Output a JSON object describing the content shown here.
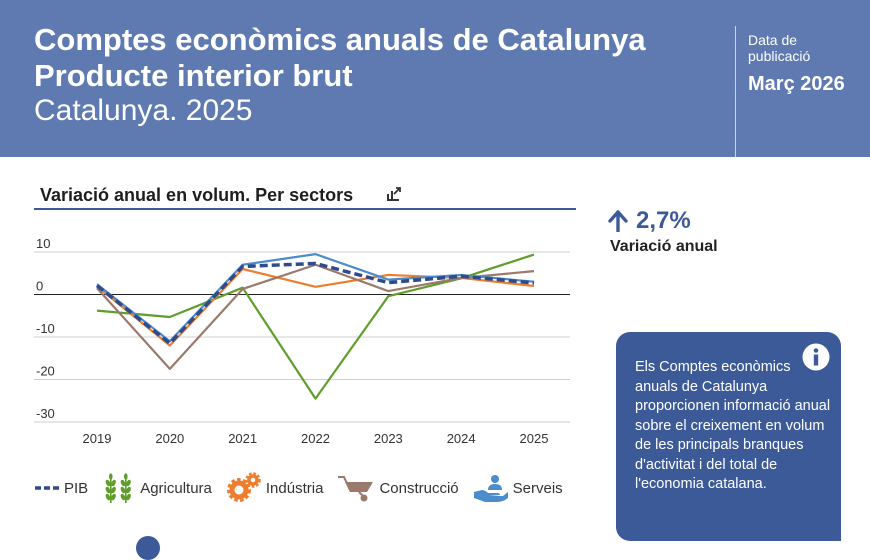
{
  "header": {
    "title_line1": "Comptes econòmics anuals de Catalunya",
    "title_line2": "Producte interior brut",
    "subtitle": "Catalunya. 2025",
    "pub_label": "Data de publicació",
    "pub_date": "Març 2026"
  },
  "chart_header": {
    "title": "Variació anual en volum. Per sectors"
  },
  "highlight": {
    "value": "2,7%",
    "label": "Variació anual"
  },
  "info": {
    "text": "Els Comptes econòmics anuals de Catalunya proporcionen informació anual sobre el creixement en volum de les principals branques d'activitat i del total de l'economia catalana."
  },
  "legend": [
    {
      "label": "PIB"
    },
    {
      "label": "Agricultura"
    },
    {
      "label": "Indústria"
    },
    {
      "label": "Construcció"
    },
    {
      "label": "Serveis"
    }
  ],
  "colors": {
    "header_bg": "#5e7ab0",
    "pib": "#2f4b8c",
    "agricultura": "#5f9e2a",
    "industria": "#ef7d2e",
    "construccio": "#9a7a6c",
    "serveis": "#4a8ccc"
  },
  "chart_data": {
    "type": "line",
    "title": "Variació anual en volum. Per sectors",
    "x": [
      "2019",
      "2020",
      "2021",
      "2022",
      "2023",
      "2024",
      "2025"
    ],
    "yticks": [
      10,
      0,
      -10,
      -20,
      -30
    ],
    "ytick_labels": [
      "10",
      "0",
      "-10",
      "-20",
      "-30"
    ],
    "ylim": [
      -30,
      10
    ],
    "series": [
      {
        "name": "Agricultura",
        "values": [
          -3.8,
          -5.3,
          1.6,
          -24.5,
          -0.4,
          3.8,
          9.4
        ],
        "color": "#5f9e2a",
        "dash": false
      },
      {
        "name": "Indústria",
        "values": [
          1.9,
          -12.0,
          6.0,
          1.8,
          4.6,
          3.9,
          2.0
        ],
        "color": "#ef7d2e",
        "dash": false
      },
      {
        "name": "Construcció",
        "values": [
          1.5,
          -17.5,
          1.3,
          7.0,
          0.8,
          3.9,
          5.5
        ],
        "color": "#9a7a6c",
        "dash": false
      },
      {
        "name": "Serveis",
        "values": [
          2.4,
          -11.0,
          7.0,
          9.5,
          3.5,
          4.6,
          3.0
        ],
        "color": "#4a8ccc",
        "dash": false
      },
      {
        "name": "PIB",
        "values": [
          2.1,
          -11.5,
          6.6,
          7.3,
          2.8,
          4.3,
          2.7
        ],
        "color": "#2f4b8c",
        "dash": true
      }
    ]
  }
}
